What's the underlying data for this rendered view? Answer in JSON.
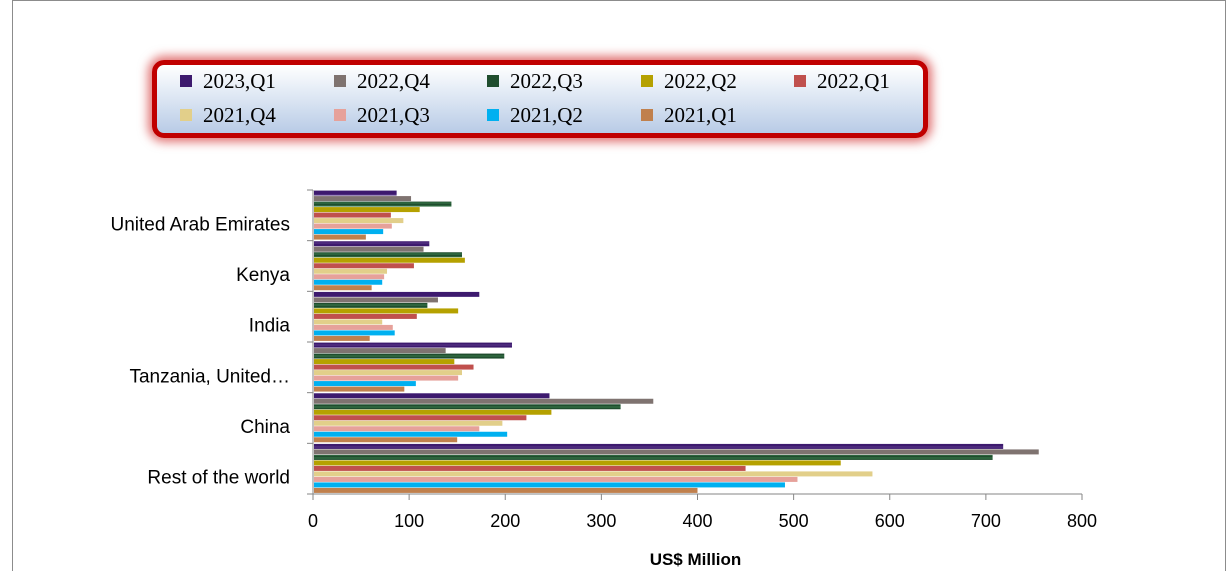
{
  "chart_data": {
    "type": "bar",
    "orientation": "horizontal",
    "title": "",
    "xlabel": "US$ Million",
    "ylabel": "",
    "xlim": [
      0,
      800
    ],
    "xticks": [
      0,
      100,
      200,
      300,
      400,
      500,
      600,
      700,
      800
    ],
    "grid": false,
    "legend_position": "top",
    "categories": [
      "United Arab Emirates",
      "Kenya",
      "India",
      "Tanzania, United…",
      "China",
      "Rest of the world"
    ],
    "series": [
      {
        "name": "2023,Q1",
        "color": "#3d1a6e",
        "values": [
          87,
          121,
          173,
          207,
          246,
          718
        ]
      },
      {
        "name": "2022,Q4",
        "color": "#7f7370",
        "values": [
          102,
          115,
          130,
          138,
          354,
          755
        ]
      },
      {
        "name": "2022,Q3",
        "color": "#1f4d2e",
        "values": [
          144,
          155,
          119,
          199,
          320,
          707
        ]
      },
      {
        "name": "2022,Q2",
        "color": "#b5a100",
        "values": [
          111,
          158,
          151,
          147,
          248,
          549
        ]
      },
      {
        "name": "2022,Q1",
        "color": "#c0504d",
        "values": [
          81,
          105,
          108,
          167,
          222,
          450
        ]
      },
      {
        "name": "2021,Q4",
        "color": "#e2cf8a",
        "values": [
          94,
          77,
          72,
          155,
          197,
          582
        ]
      },
      {
        "name": "2021,Q3",
        "color": "#e6a19a",
        "values": [
          82,
          74,
          83,
          151,
          173,
          504
        ]
      },
      {
        "name": "2021,Q2",
        "color": "#00b0f0",
        "values": [
          73,
          72,
          85,
          107,
          202,
          491
        ]
      },
      {
        "name": "2021,Q1",
        "color": "#c0804d",
        "values": [
          55,
          61,
          59,
          95,
          150,
          400
        ]
      }
    ]
  }
}
